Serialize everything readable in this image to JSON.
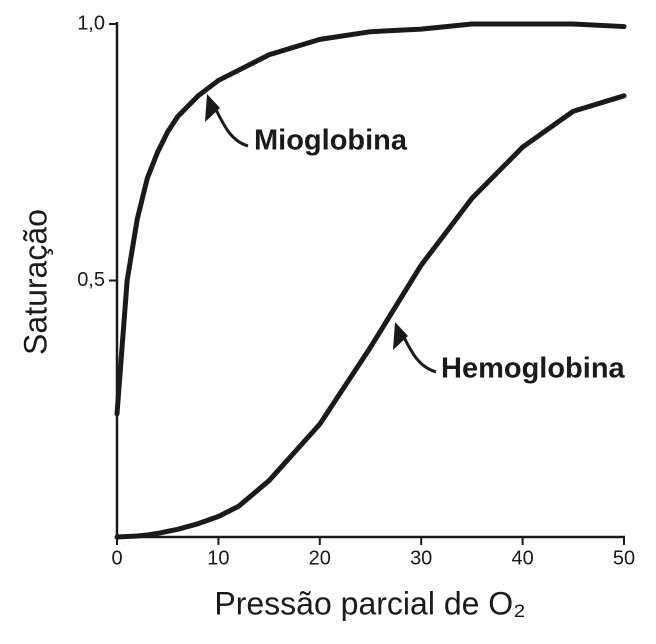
{
  "chart_data": {
    "type": "line",
    "x_label": "Pressão parcial de O₂",
    "y_label": "Saturação",
    "x": [
      0,
      1,
      2,
      3,
      4,
      5,
      6,
      8,
      10,
      12,
      15,
      20,
      25,
      30,
      35,
      40,
      45,
      50
    ],
    "series": [
      {
        "name": "Mioglobina",
        "color": "#1a1a1a",
        "values": [
          0.24,
          0.5,
          0.62,
          0.7,
          0.75,
          0.79,
          0.82,
          0.86,
          0.89,
          0.91,
          0.94,
          0.97,
          0.985,
          0.99,
          1.0,
          1.0,
          1.0,
          0.995
        ]
      },
      {
        "name": "Hemoglobina",
        "color": "#1a1a1a",
        "values": [
          0,
          0.001,
          0.002,
          0.004,
          0.007,
          0.011,
          0.015,
          0.026,
          0.04,
          0.06,
          0.11,
          0.22,
          0.37,
          0.53,
          0.66,
          0.76,
          0.83,
          0.86
        ]
      }
    ],
    "xlim": [
      0,
      50
    ],
    "xticks": [
      0,
      10,
      20,
      30,
      40,
      50
    ],
    "ylim": [
      0,
      1.0
    ],
    "yticks": [
      {
        "value": 0.5,
        "label": "0,5"
      },
      {
        "value": 1.0,
        "label": "1,0"
      }
    ],
    "grid": false
  }
}
